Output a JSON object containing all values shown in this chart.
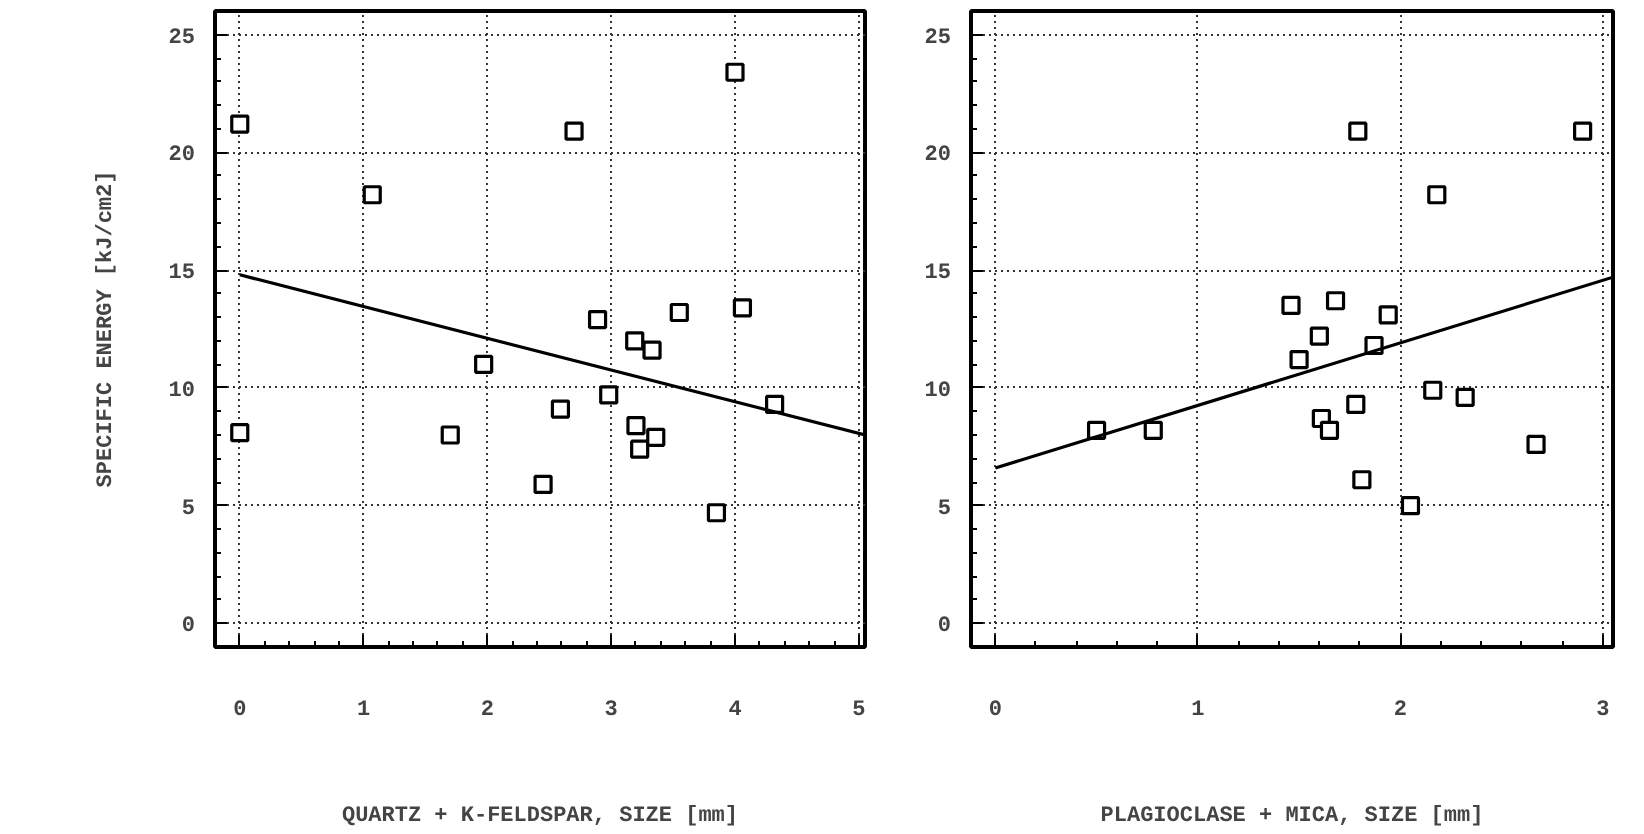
{
  "chart_data": [
    {
      "type": "scatter",
      "ylabel": "SPECIFIC ENERGY [kJ/cm2]",
      "xlabel": "QUARTZ + K-FELDSPAR, SIZE [mm]",
      "xlim": [
        -0.2,
        5.05
      ],
      "ylim": [
        -1,
        26
      ],
      "xticks": [
        0,
        1,
        2,
        3,
        4,
        5
      ],
      "yticks": [
        0,
        5,
        10,
        15,
        20,
        25
      ],
      "grid": true,
      "series": [
        {
          "marker": "square",
          "color": "#000000",
          "x": [
            0.0,
            0.0,
            1.07,
            2.7,
            1.97,
            1.7,
            2.45,
            2.59,
            2.89,
            2.98,
            3.19,
            3.33,
            3.2,
            3.23,
            3.36,
            3.55,
            4.06,
            3.85,
            4.32,
            4.0
          ],
          "values": [
            21.2,
            8.1,
            18.2,
            20.9,
            11.0,
            8.0,
            5.9,
            9.1,
            12.9,
            9.7,
            12.0,
            11.6,
            8.4,
            7.4,
            7.9,
            13.2,
            13.4,
            4.7,
            9.3,
            23.4
          ]
        },
        {
          "type": "line",
          "marker": "none",
          "color": "#000000",
          "x": [
            0,
            5.05
          ],
          "values": [
            14.8,
            8.0
          ]
        }
      ]
    },
    {
      "type": "scatter",
      "xlabel": "PLAGIOCLASE + MICA, SIZE [mm]",
      "xlim": [
        -0.12,
        3.05
      ],
      "ylim": [
        -1,
        26
      ],
      "xticks": [
        0,
        1,
        2,
        3
      ],
      "yticks": [
        0,
        5,
        10,
        15,
        20,
        25
      ],
      "grid": true,
      "series": [
        {
          "marker": "square",
          "color": "#000000",
          "x": [
            0.5,
            0.78,
            1.46,
            1.5,
            1.6,
            1.68,
            1.61,
            1.65,
            1.78,
            1.79,
            1.81,
            1.87,
            1.94,
            2.05,
            2.16,
            2.18,
            2.32,
            2.67,
            2.9
          ],
          "values": [
            8.2,
            8.2,
            13.5,
            11.2,
            12.2,
            13.7,
            8.7,
            8.2,
            9.3,
            20.9,
            6.1,
            11.8,
            13.1,
            5.0,
            9.9,
            18.2,
            9.6,
            7.6,
            20.9
          ]
        },
        {
          "type": "line",
          "marker": "none",
          "color": "#000000",
          "x": [
            0,
            3.05
          ],
          "values": [
            6.6,
            14.7
          ]
        }
      ]
    }
  ]
}
